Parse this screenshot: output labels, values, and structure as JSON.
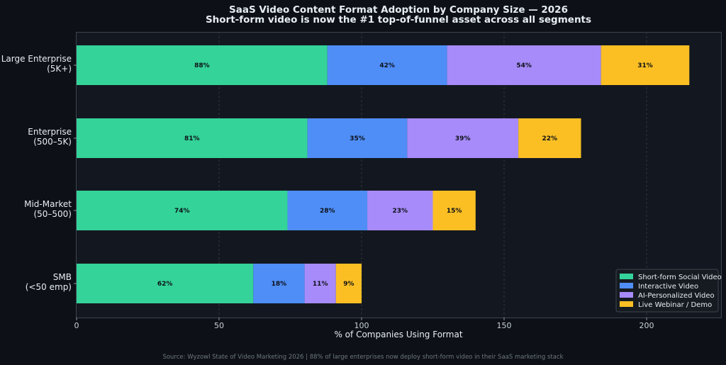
{
  "chart_data": {
    "type": "bar",
    "orientation": "horizontal",
    "stacked": true,
    "title": "SaaS Video Content Format Adoption by Company Size — 2026",
    "subtitle": "Short-form video is now the #1 top-of-funnel asset across all segments",
    "xlabel": "% of Companies Using Format",
    "ylabel": "",
    "xlim": [
      0,
      225
    ],
    "xticks": [
      0,
      50,
      100,
      150,
      200
    ],
    "grid": "vertical-dashed",
    "legend_position": "bottom-right",
    "categories": [
      [
        "Large Enterprise",
        "(5K+)"
      ],
      [
        "Enterprise",
        "(500–5K)"
      ],
      [
        "Mid-Market",
        "(50–500)"
      ],
      [
        "SMB",
        "(<50 emp)"
      ]
    ],
    "series": [
      {
        "name": "Short-form Social Video",
        "color": "#34d399",
        "values": [
          88,
          81,
          74,
          62
        ]
      },
      {
        "name": "Interactive Video",
        "color": "#4f8ef7",
        "values": [
          42,
          35,
          28,
          18
        ]
      },
      {
        "name": "AI-Personalized Video",
        "color": "#a78bfa",
        "values": [
          54,
          39,
          23,
          11
        ]
      },
      {
        "name": "Live Webinar / Demo",
        "color": "#fbbf24",
        "values": [
          31,
          22,
          15,
          9
        ]
      }
    ],
    "value_suffix": "%"
  },
  "footer": {
    "source": "Source: Wyzowl State of Video Marketing 2026  |  88% of large enterprises now deploy short-form video in their SaaS marketing stack"
  },
  "colors": {
    "background": "#0d1117",
    "plot_background": "#131820",
    "grid": "#30363d",
    "spine": "#3d444d"
  }
}
